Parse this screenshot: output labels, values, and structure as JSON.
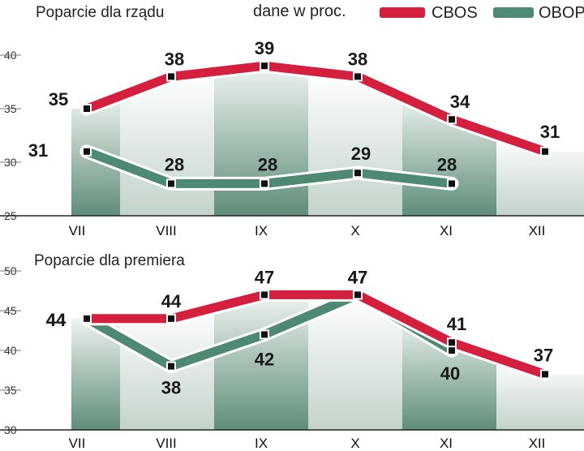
{
  "legend": {
    "unit_note": "dane w proc.",
    "cbos_label": "CBOS",
    "obop_label": "OBOP"
  },
  "colors": {
    "cbos": "#d41f3f",
    "obop": "#4e8a72"
  },
  "chart_data": [
    {
      "type": "line",
      "title": "Poparcie dla rządu",
      "categories": [
        "VII",
        "VIII",
        "IX",
        "X",
        "XI",
        "XII"
      ],
      "ylim": [
        25,
        40
      ],
      "yticks": [
        25,
        30,
        35,
        40
      ],
      "series": [
        {
          "name": "CBOS",
          "values": [
            35,
            38,
            39,
            38,
            34,
            31
          ]
        },
        {
          "name": "OBOP",
          "values": [
            31,
            28,
            28,
            29,
            28,
            null
          ]
        }
      ]
    },
    {
      "type": "line",
      "title": "Poparcie dla premiera",
      "categories": [
        "VII",
        "VIII",
        "IX",
        "X",
        "XI",
        "XII"
      ],
      "ylim": [
        30,
        50
      ],
      "yticks": [
        30,
        35,
        40,
        45,
        50
      ],
      "series": [
        {
          "name": "CBOS",
          "values": [
            44,
            44,
            47,
            47,
            41,
            37
          ]
        },
        {
          "name": "OBOP",
          "values": [
            44,
            38,
            42,
            47,
            40,
            null
          ]
        }
      ]
    }
  ]
}
